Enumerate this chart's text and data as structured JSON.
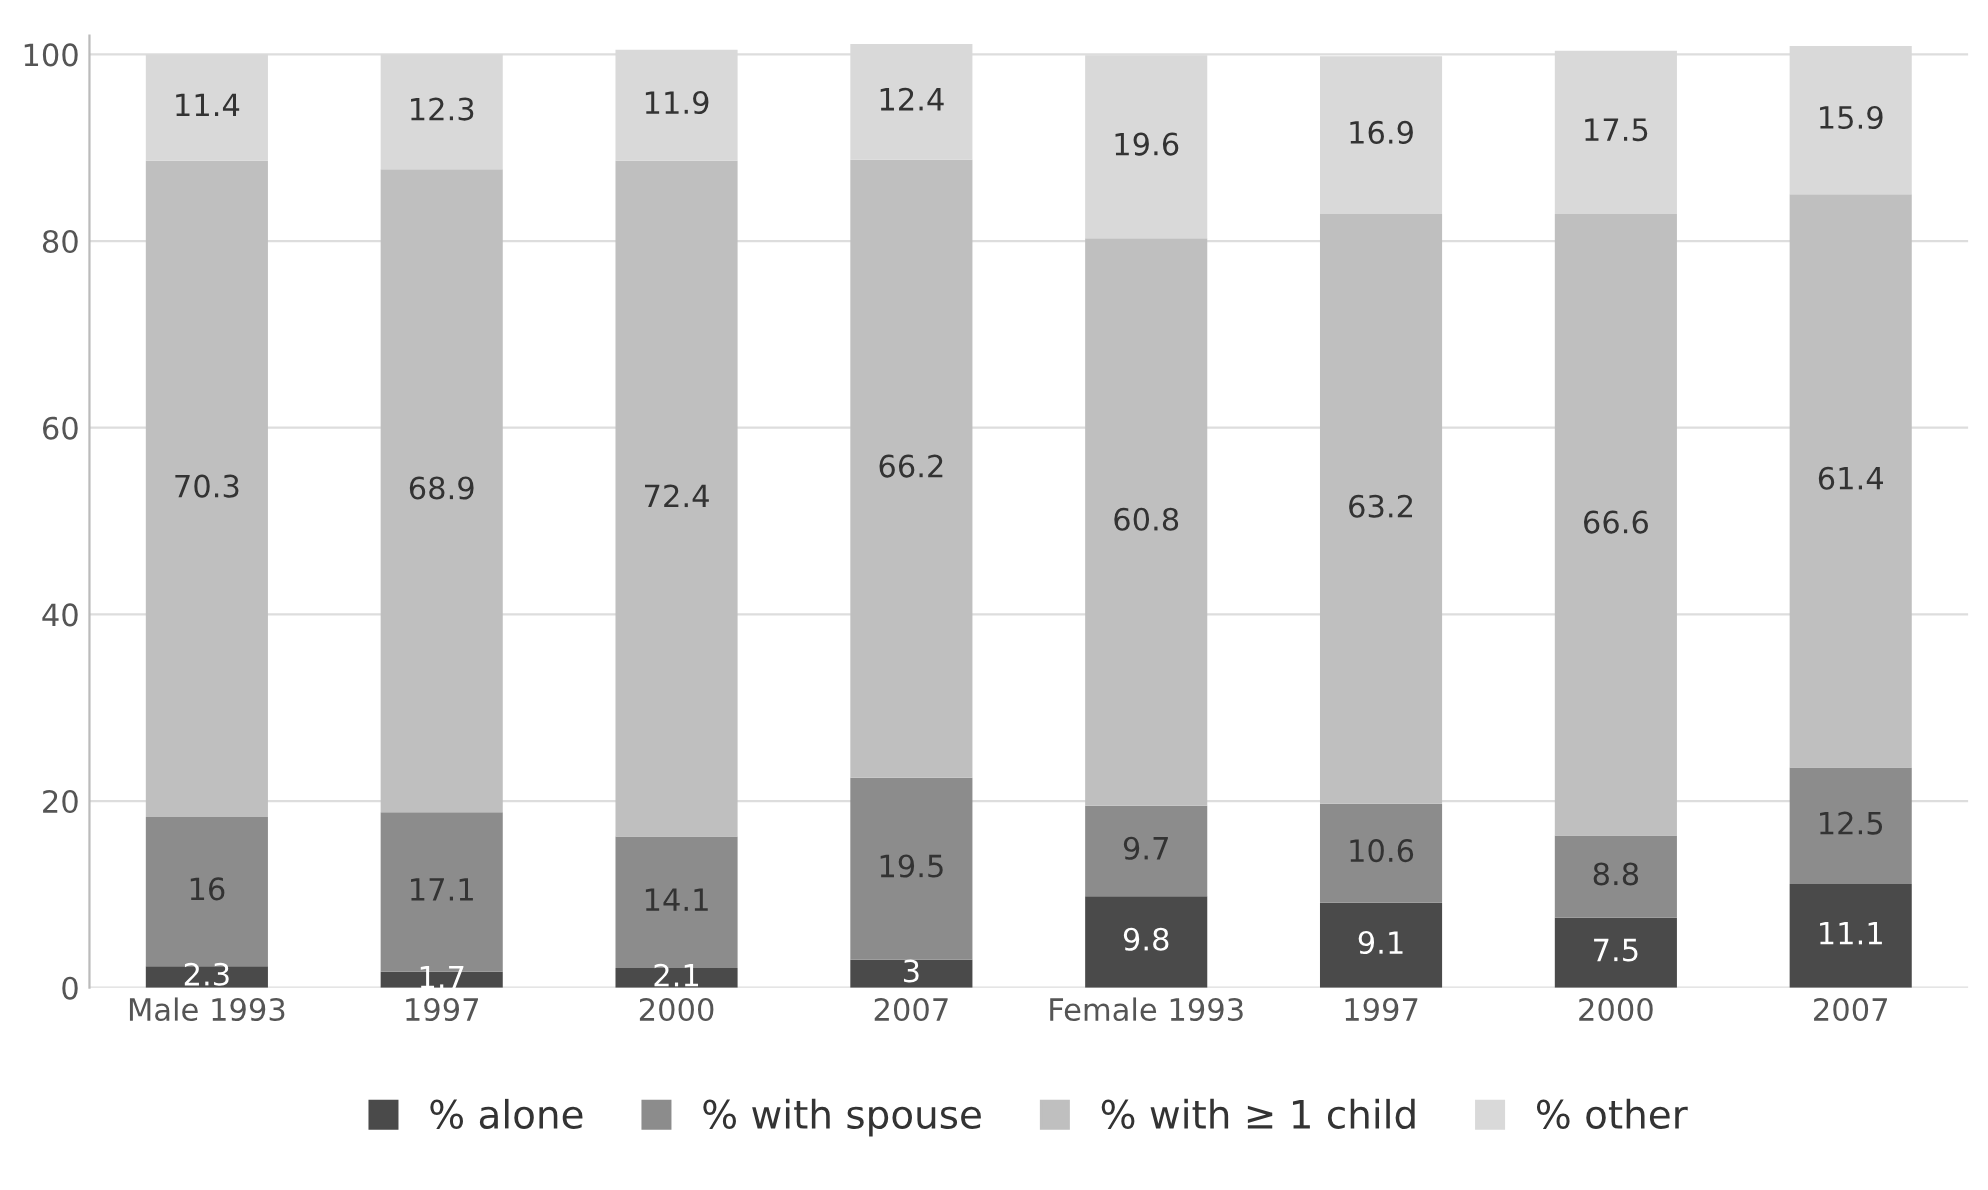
{
  "chart_data": {
    "type": "bar",
    "stacked": true,
    "categories": [
      "Male 1993",
      "1997",
      "2000",
      "2007",
      "Female 1993",
      "1997",
      "2000",
      "2007"
    ],
    "series": [
      {
        "name": "% alone",
        "color": "#4a4a4a",
        "values": [
          2.3,
          1.7,
          2.1,
          3,
          9.8,
          9.1,
          7.5,
          11.1
        ]
      },
      {
        "name": "% with spouse",
        "color": "#8c8c8c",
        "values": [
          16,
          17.1,
          14.1,
          19.5,
          9.7,
          10.6,
          8.8,
          12.5
        ]
      },
      {
        "name": "% with ≥ 1 child",
        "color": "#bfbfbf",
        "values": [
          70.3,
          68.9,
          72.4,
          66.2,
          60.8,
          63.2,
          66.6,
          61.4
        ]
      },
      {
        "name": "% other",
        "color": "#d9d9d9",
        "values": [
          11.4,
          12.3,
          11.9,
          12.4,
          19.6,
          16.9,
          17.5,
          15.9
        ]
      }
    ],
    "ylim": [
      0,
      102
    ],
    "yticks": [
      0,
      20,
      40,
      60,
      80,
      100
    ],
    "grid": "y",
    "legend": "bottom",
    "data_labels": true
  }
}
